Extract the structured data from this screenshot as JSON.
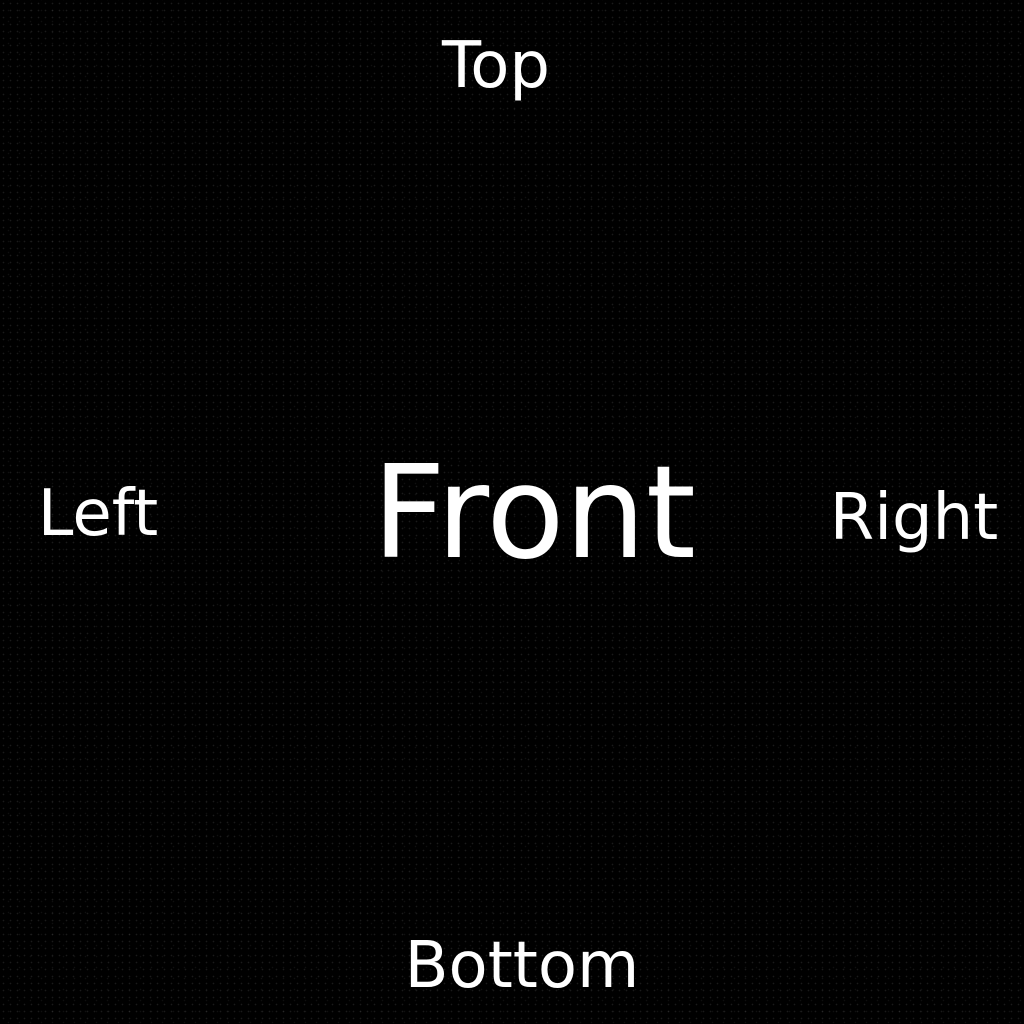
{
  "labels": {
    "top": "Top",
    "bottom": "Bottom",
    "left": "Left",
    "right": "Right",
    "front": "Front"
  },
  "colors": {
    "background": "#000000",
    "text": "#ffffff"
  }
}
